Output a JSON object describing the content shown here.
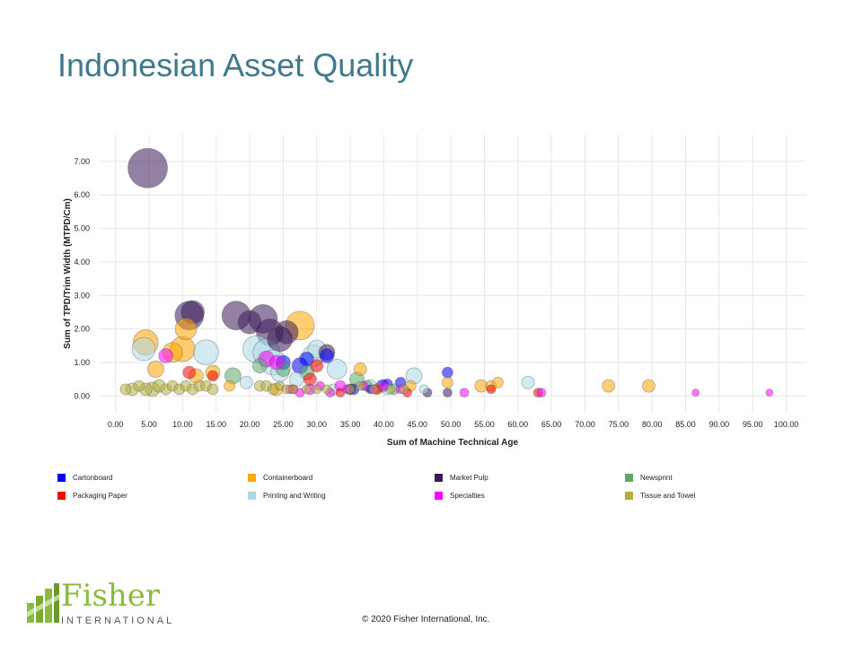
{
  "slide": {
    "title": "Indonesian Asset Quality",
    "copyright": "© 2020 Fisher International,  Inc.",
    "logo_name": "Fisher",
    "logo_sub": "INTERNATIONAL"
  },
  "chart_data": {
    "type": "scatter",
    "title": "",
    "xlabel": "Sum of Machine Technical Age",
    "ylabel": "Sum of TPD/Trim Width (MTPD/Cm)",
    "xlim": [
      -2.5,
      103
    ],
    "ylim": [
      -0.5,
      7.8
    ],
    "x_ticks": [
      "0.00",
      "5.00",
      "10.00",
      "15.00",
      "20.00",
      "25.00",
      "30.00",
      "35.00",
      "40.00",
      "45.00",
      "50.00",
      "55.00",
      "60.00",
      "65.00",
      "70.00",
      "75.00",
      "80.00",
      "85.00",
      "90.00",
      "95.00",
      "100.00"
    ],
    "y_ticks": [
      "0.00",
      "1.00",
      "2.00",
      "3.00",
      "4.00",
      "5.00",
      "6.00",
      "7.00"
    ],
    "grid": true,
    "legend_position": "bottom",
    "series": [
      {
        "name": "Cartonboard",
        "color": "#0000ff",
        "points": [
          [
            25.0,
            1.0,
            8
          ],
          [
            27.5,
            0.9,
            9
          ],
          [
            28.5,
            1.1,
            8
          ],
          [
            31.5,
            1.2,
            8
          ],
          [
            35.5,
            0.2,
            6
          ],
          [
            39.8,
            0.3,
            7
          ],
          [
            40.5,
            0.35,
            6
          ],
          [
            42.5,
            0.4,
            6
          ],
          [
            49.5,
            0.7,
            6
          ],
          [
            38.0,
            0.2,
            5
          ]
        ]
      },
      {
        "name": "Containerboard",
        "color": "#ffa500",
        "points": [
          [
            4.5,
            1.6,
            14
          ],
          [
            6.0,
            0.8,
            9
          ],
          [
            8.5,
            1.3,
            11
          ],
          [
            10.0,
            1.4,
            14
          ],
          [
            10.5,
            2.0,
            12
          ],
          [
            12.0,
            0.6,
            8
          ],
          [
            14.5,
            0.7,
            8
          ],
          [
            17.0,
            0.3,
            6
          ],
          [
            27.5,
            2.1,
            16
          ],
          [
            36.5,
            0.8,
            7
          ],
          [
            44.0,
            0.3,
            6
          ],
          [
            49.5,
            0.4,
            6
          ],
          [
            54.5,
            0.3,
            7
          ],
          [
            56.0,
            0.3,
            6
          ],
          [
            57.0,
            0.4,
            6
          ],
          [
            73.5,
            0.3,
            7
          ],
          [
            79.5,
            0.3,
            7
          ],
          [
            24.0,
            0.2,
            7
          ],
          [
            39.0,
            0.2,
            6
          ]
        ]
      },
      {
        "name": "Market Pulp",
        "color": "#3b1a5a",
        "points": [
          [
            4.8,
            6.8,
            22
          ],
          [
            11.0,
            2.4,
            16
          ],
          [
            11.5,
            2.5,
            13
          ],
          [
            18.0,
            2.4,
            16
          ],
          [
            20.0,
            2.2,
            13
          ],
          [
            22.0,
            2.3,
            16
          ],
          [
            23.0,
            1.9,
            15
          ],
          [
            24.5,
            1.7,
            14
          ],
          [
            25.5,
            1.9,
            13
          ],
          [
            31.5,
            1.3,
            9
          ],
          [
            35.0,
            0.2,
            6
          ],
          [
            49.5,
            0.1,
            5
          ],
          [
            46.5,
            0.1,
            5
          ]
        ]
      },
      {
        "name": "Newsprint",
        "color": "#5aa96e",
        "points": [
          [
            17.5,
            0.6,
            9
          ],
          [
            21.5,
            0.9,
            8
          ],
          [
            25.0,
            0.8,
            8
          ],
          [
            28.5,
            0.7,
            8
          ],
          [
            36.0,
            0.5,
            8
          ],
          [
            37.5,
            0.3,
            6
          ],
          [
            41.5,
            0.2,
            6
          ]
        ]
      },
      {
        "name": "Packaging Paper",
        "color": "#ff0000",
        "points": [
          [
            11.0,
            0.7,
            7
          ],
          [
            14.5,
            0.6,
            6
          ],
          [
            29.0,
            0.5,
            7
          ],
          [
            30.0,
            0.9,
            7
          ],
          [
            43.5,
            0.1,
            5
          ],
          [
            56.0,
            0.2,
            5
          ],
          [
            63.0,
            0.1,
            5
          ],
          [
            33.5,
            0.1,
            5
          ],
          [
            39.0,
            0.2,
            5
          ],
          [
            26.5,
            0.2,
            5
          ]
        ]
      },
      {
        "name": "Printing and Writing",
        "color": "#add8e6",
        "points": [
          [
            4.2,
            1.4,
            13
          ],
          [
            13.5,
            1.3,
            14
          ],
          [
            19.5,
            0.4,
            7
          ],
          [
            21.0,
            1.4,
            15
          ],
          [
            22.5,
            1.3,
            15
          ],
          [
            23.5,
            1.0,
            14
          ],
          [
            24.5,
            0.7,
            10
          ],
          [
            29.5,
            1.2,
            12
          ],
          [
            30.0,
            1.4,
            10
          ],
          [
            33.0,
            0.8,
            11
          ],
          [
            38.0,
            0.3,
            7
          ],
          [
            44.5,
            0.6,
            9
          ],
          [
            61.5,
            0.4,
            7
          ],
          [
            46.0,
            0.2,
            5
          ],
          [
            40.5,
            0.2,
            6
          ],
          [
            27.0,
            0.5,
            8
          ],
          [
            32.5,
            0.2,
            6
          ]
        ]
      },
      {
        "name": "Specialties",
        "color": "#ff00ff",
        "points": [
          [
            7.5,
            1.2,
            8
          ],
          [
            22.5,
            1.1,
            9
          ],
          [
            24.0,
            1.0,
            8
          ],
          [
            26.0,
            0.2,
            5
          ],
          [
            27.5,
            0.1,
            5
          ],
          [
            29.0,
            0.2,
            6
          ],
          [
            30.5,
            0.3,
            5
          ],
          [
            32.0,
            0.1,
            5
          ],
          [
            33.5,
            0.3,
            6
          ],
          [
            34.5,
            0.2,
            5
          ],
          [
            37.0,
            0.3,
            5
          ],
          [
            38.5,
            0.2,
            5
          ],
          [
            40.0,
            0.3,
            5
          ],
          [
            42.5,
            0.2,
            5
          ],
          [
            52.0,
            0.1,
            5
          ],
          [
            63.5,
            0.1,
            5
          ],
          [
            86.5,
            0.1,
            4
          ],
          [
            97.5,
            0.1,
            4
          ]
        ]
      },
      {
        "name": "Tissue and Towel",
        "color": "#b5ae3f",
        "points": [
          [
            1.5,
            0.2,
            6
          ],
          [
            2.5,
            0.2,
            7
          ],
          [
            3.5,
            0.3,
            6
          ],
          [
            4.5,
            0.2,
            7
          ],
          [
            5.5,
            0.2,
            8
          ],
          [
            6.5,
            0.3,
            7
          ],
          [
            7.5,
            0.2,
            6
          ],
          [
            8.5,
            0.3,
            6
          ],
          [
            9.5,
            0.2,
            6
          ],
          [
            10.5,
            0.3,
            6
          ],
          [
            11.5,
            0.2,
            6
          ],
          [
            12.5,
            0.3,
            6
          ],
          [
            13.5,
            0.3,
            6
          ],
          [
            14.5,
            0.2,
            6
          ],
          [
            21.5,
            0.3,
            6
          ],
          [
            22.5,
            0.3,
            6
          ],
          [
            23.5,
            0.2,
            6
          ],
          [
            24.5,
            0.3,
            5
          ],
          [
            25.5,
            0.2,
            5
          ],
          [
            26.5,
            0.2,
            5
          ],
          [
            28.5,
            0.2,
            5
          ],
          [
            30.0,
            0.2,
            5
          ],
          [
            31.5,
            0.2,
            5
          ],
          [
            35.0,
            0.2,
            5
          ],
          [
            36.5,
            0.3,
            5
          ],
          [
            38.5,
            0.2,
            5
          ],
          [
            41.0,
            0.2,
            5
          ],
          [
            43.0,
            0.2,
            5
          ]
        ]
      }
    ]
  }
}
